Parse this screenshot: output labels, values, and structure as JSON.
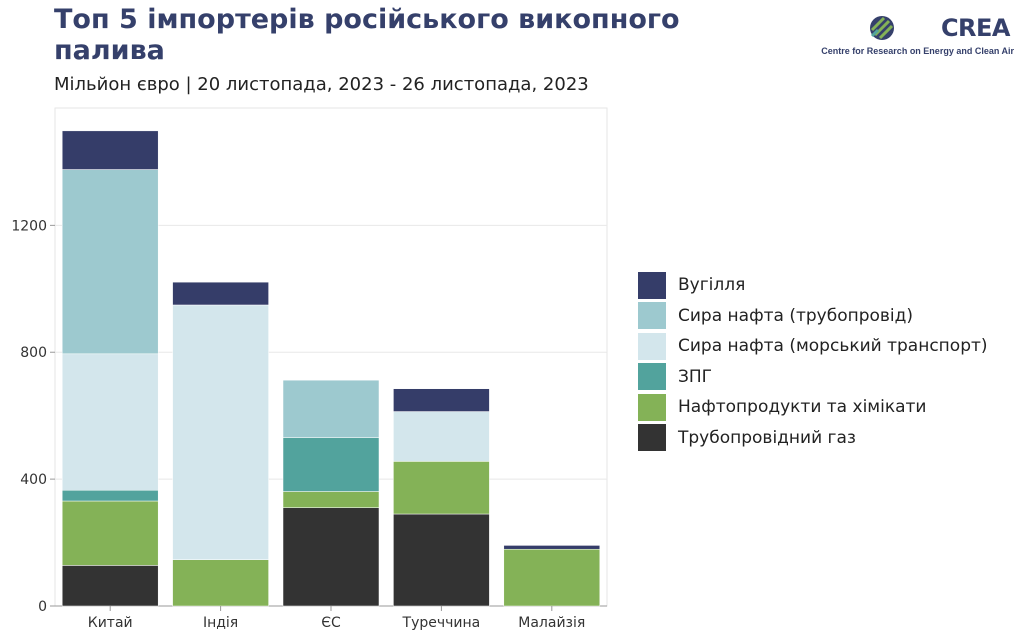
{
  "header": {
    "title": "Топ 5 імпортерів російського викопного палива",
    "subtitle": "Мільйон євро | 20 листопада, 2023 - 26 листопада, 2023"
  },
  "logo": {
    "name": "CREA",
    "tagline": "Centre for Research on Energy and Clean Air"
  },
  "chart_data": {
    "type": "bar",
    "stacked": true,
    "title": "Топ 5 імпортерів російського викопного палива",
    "subtitle": "Мільйон євро | 20 листопада, 2023 - 26 листопада, 2023",
    "xlabel": "",
    "ylabel": "",
    "ylim": [
      0,
      1570
    ],
    "yticks": [
      0,
      400,
      800,
      1200
    ],
    "grid": true,
    "legend_position": "right",
    "categories": [
      "Китай",
      "Індія",
      "ЄС",
      "Туреччина",
      "Малайзія"
    ],
    "series": [
      {
        "name": "Трубопровідний газ",
        "color": "#333333",
        "values": [
          128,
          0,
          310,
          290,
          0
        ]
      },
      {
        "name": "Нафтопродукти та хімікати",
        "color": "#84b257",
        "values": [
          203,
          146,
          51,
          166,
          179
        ]
      },
      {
        "name": "ЗПГ",
        "color": "#52a39d",
        "values": [
          34,
          0,
          170,
          0,
          0
        ]
      },
      {
        "name": "Сира нафта (морський транспорт)",
        "color": "#d3e6ec",
        "values": [
          430,
          803,
          0,
          157,
          0
        ]
      },
      {
        "name": "Сира нафта (трубопровід)",
        "color": "#9dc9cf",
        "values": [
          581,
          0,
          181,
          0,
          0
        ]
      },
      {
        "name": "Вугілля",
        "color": "#353d69",
        "values": [
          122,
          72,
          0,
          72,
          12
        ]
      }
    ]
  }
}
